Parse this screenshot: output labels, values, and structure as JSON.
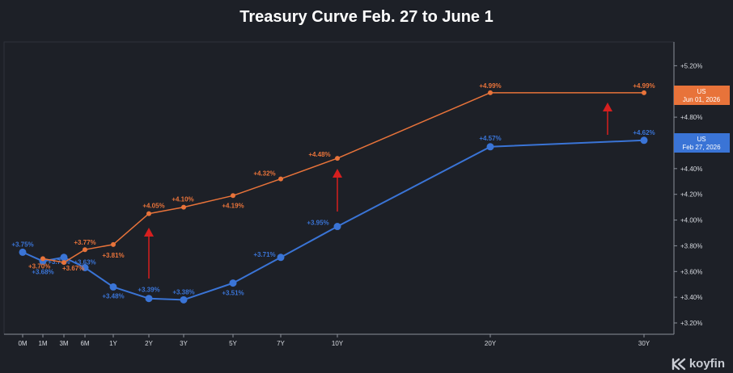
{
  "chart_data": {
    "type": "line",
    "title": "Treasury Curve Feb. 27 to June 1",
    "categories": [
      "0M",
      "1M",
      "3M",
      "6M",
      "1Y",
      "2Y",
      "3Y",
      "5Y",
      "7Y",
      "10Y",
      "20Y",
      "30Y"
    ],
    "y_ticks": [
      "+3.20%",
      "+3.40%",
      "+3.60%",
      "+3.80%",
      "+4.00%",
      "+4.20%",
      "+4.40%",
      "+4.60%",
      "+4.80%",
      "+5.00%",
      "+5.20%"
    ],
    "ylim": [
      3.15,
      5.3
    ],
    "grid": false,
    "legend_position": "right",
    "series": [
      {
        "name": "US",
        "date_label": "Jun 01, 2026",
        "color": "#e8733a",
        "values": [
          null,
          3.7,
          3.67,
          3.77,
          3.81,
          4.05,
          4.1,
          4.19,
          4.32,
          4.48,
          4.99,
          4.99
        ],
        "labels": [
          null,
          "+3.70%",
          "+3.67%",
          "+3.77%",
          "+3.81%",
          "+4.05%",
          "+4.10%",
          "+4.19%",
          "+4.32%",
          "+4.48%",
          "+4.99%",
          "+4.99%"
        ]
      },
      {
        "name": "US",
        "date_label": "Feb 27, 2026",
        "color": "#3a74d6",
        "values": [
          3.75,
          3.68,
          3.71,
          3.63,
          3.48,
          3.39,
          3.38,
          3.51,
          3.71,
          3.95,
          4.57,
          4.62
        ],
        "labels": [
          "+3.75%",
          "+3.68%",
          "+3.71%",
          "+3.63%",
          "+3.48%",
          "+3.39%",
          "+3.38%",
          "+3.51%",
          "+3.71%",
          "+3.95%",
          "+4.57%",
          "+4.62%"
        ]
      }
    ],
    "annotations": [
      "up-arrow",
      "up-arrow",
      "up-arrow"
    ]
  },
  "brand": {
    "name": "koyfin",
    "icon": "koyfin-logo-icon"
  },
  "colors": {
    "background": "#1d2027",
    "axis": "#8a8f99",
    "text": "#d6d9df",
    "arrow": "#d61f1f"
  }
}
